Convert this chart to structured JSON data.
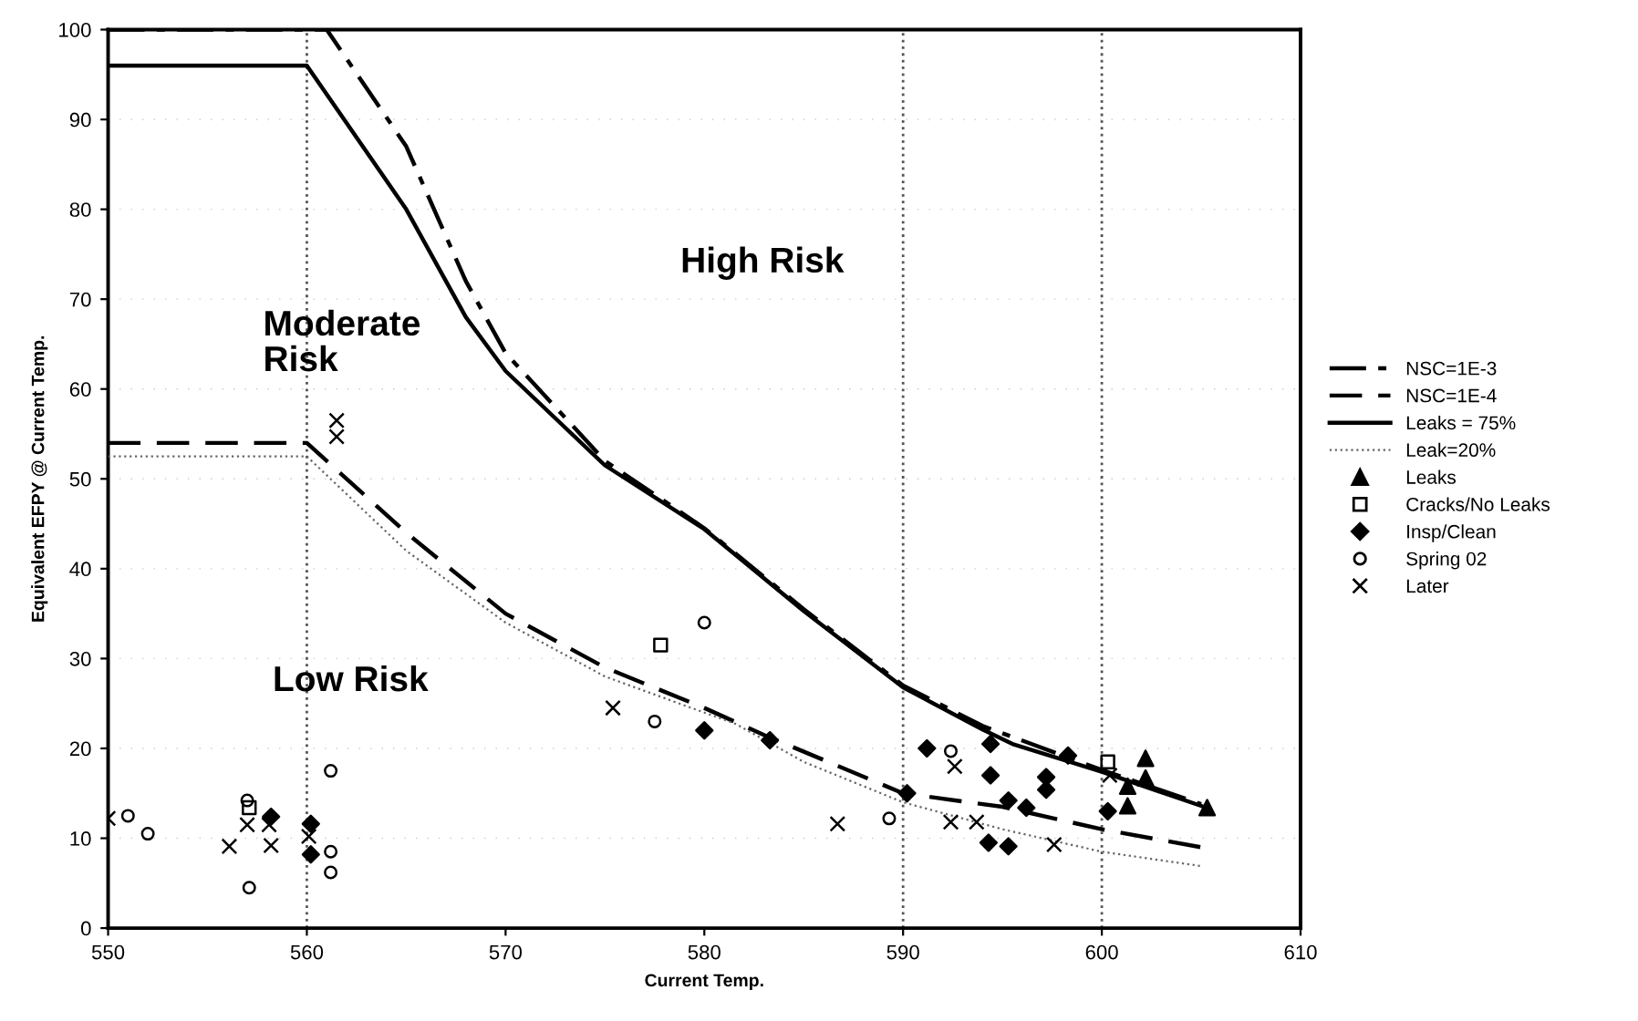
{
  "chart_data": {
    "type": "scatter",
    "xlabel": "Current Temp.",
    "ylabel": "Equivalent EFPY @ Current Temp.",
    "xlim": [
      550,
      610
    ],
    "xticks": [
      550,
      560,
      570,
      580,
      590,
      600,
      610
    ],
    "ylim": [
      0,
      100
    ],
    "yticks": [
      0,
      10,
      20,
      30,
      40,
      50,
      60,
      70,
      80,
      90,
      100
    ],
    "grid": "y",
    "legend": "right",
    "ref_lines": [
      {
        "axis": "x",
        "value": 560,
        "color": "#555555",
        "line_style": "dotted"
      },
      {
        "axis": "x",
        "value": 590,
        "color": "#555555",
        "line_style": "dotted"
      },
      {
        "axis": "x",
        "value": 600,
        "color": "#555555",
        "line_style": "dotted"
      }
    ],
    "annotations": [
      "Moderate\nRisk",
      "High Risk",
      "Low Risk"
    ],
    "series": [
      {
        "name": "NSC=1E-3",
        "type": "line",
        "line_style": "dashdot",
        "color": "#000000",
        "x": [
          550,
          561,
          565,
          568,
          570,
          575,
          580,
          585,
          590,
          594,
          600,
          605
        ],
        "values": [
          100,
          100,
          87,
          72,
          64,
          52,
          44.5,
          35.5,
          27,
          22.5,
          17.6,
          13.8
        ]
      },
      {
        "name": "NSC=1E-4",
        "type": "line",
        "line_style": "dashed",
        "color": "#000000",
        "x": [
          550,
          560,
          565,
          570,
          575,
          580,
          583,
          590,
          595,
          600,
          605
        ],
        "values": [
          54,
          54,
          44,
          35,
          29,
          24.5,
          21.5,
          15,
          13.5,
          11,
          9
        ]
      },
      {
        "name": "Leaks = 75%",
        "type": "line",
        "line_style": "solid",
        "color": "#000000",
        "x": [
          550,
          560,
          565,
          568,
          570,
          575,
          580,
          585,
          590,
          594,
          595.5,
          600,
          605
        ],
        "values": [
          96,
          96,
          80,
          68,
          62,
          51.5,
          44.4,
          35.3,
          26.8,
          22.1,
          20.5,
          17.4,
          13.6
        ]
      },
      {
        "name": "Leak=20%",
        "type": "line",
        "line_style": "dotted",
        "color": "#666666",
        "x": [
          550,
          560,
          565,
          570,
          575,
          581.6,
          585,
          590,
          595,
          600,
          605
        ],
        "values": [
          52.5,
          52.5,
          42,
          34,
          28,
          22.7,
          18.5,
          14,
          11,
          8.5,
          6.9
        ]
      },
      {
        "name": "Leaks",
        "marker": "triangle",
        "color": "#000000",
        "x": [
          601.3,
          601.3,
          602.2,
          602.2,
          605.3
        ],
        "values": [
          15.8,
          13.6,
          18.9,
          16.7,
          13.4
        ]
      },
      {
        "name": "Cracks/No Leaks",
        "marker": "square",
        "color": "#000000",
        "x": [
          557.1,
          577.8,
          600.3
        ],
        "values": [
          13.4,
          31.5,
          18.5
        ]
      },
      {
        "name": "Insp/Clean",
        "marker": "diamond",
        "color": "#000000",
        "x": [
          558.2,
          560.2,
          560.2,
          583.3,
          590.2,
          591.2,
          594.4,
          594.4,
          595.3,
          596.2,
          594.3,
          595.3,
          597.2,
          597.2,
          598.3,
          600.3,
          580
        ],
        "values": [
          12.4,
          11.6,
          8.2,
          20.9,
          15,
          20,
          20.5,
          17,
          14.2,
          13.4,
          9.5,
          9.1,
          16.8,
          15.4,
          19.2,
          13,
          22
        ]
      },
      {
        "name": "Spring 02",
        "marker": "circle",
        "color": "#000000",
        "x": [
          551,
          552,
          557,
          557.1,
          561.2,
          561.2,
          561.2,
          577.5,
          580,
          589.3,
          592.4
        ],
        "values": [
          12.5,
          10.5,
          14.2,
          4.5,
          17.5,
          8.5,
          6.2,
          23,
          34,
          12.2,
          19.7
        ]
      },
      {
        "name": "Later",
        "marker": "cross",
        "color": "#000000",
        "x": [
          550,
          556.1,
          557,
          558.2,
          558.1,
          560.1,
          561.5,
          561.5,
          575.4,
          586.7,
          592.6,
          592.4,
          593.7,
          597.6,
          600.4
        ],
        "values": [
          12.2,
          9.1,
          11.5,
          9.2,
          11.5,
          10.2,
          56.5,
          54.7,
          24.5,
          11.6,
          18,
          11.8,
          11.8,
          9.3,
          17
        ]
      }
    ]
  }
}
